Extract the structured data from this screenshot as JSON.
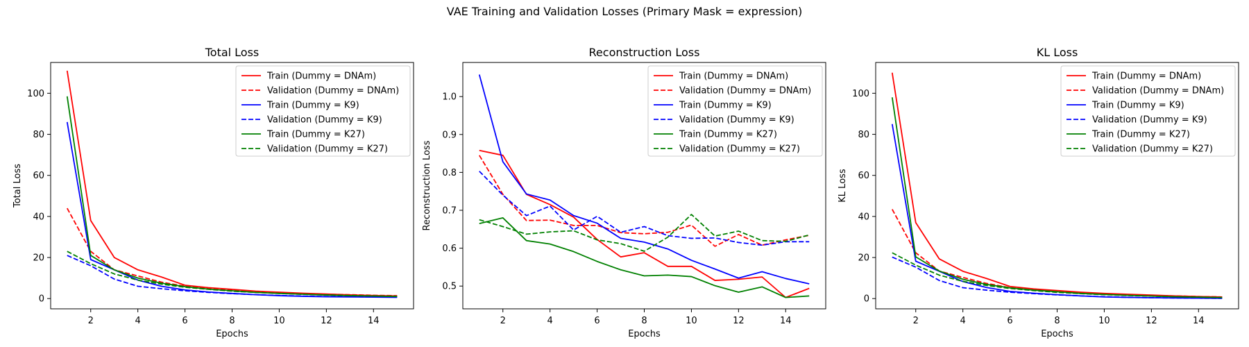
{
  "figure": {
    "suptitle": "VAE Training and Validation Losses (Primary Mask = expression)"
  },
  "legend_labels": [
    "Train (Dummy = DNAm)",
    "Validation (Dummy = DNAm)",
    "Train (Dummy = K9)",
    "Validation (Dummy = K9)",
    "Train (Dummy = K27)",
    "Validation (Dummy = K27)"
  ],
  "colors": {
    "DNAm": "#ff0000",
    "K9": "#0000ff",
    "K27": "#008000"
  },
  "chart_data": [
    {
      "type": "line",
      "title": "Total Loss",
      "xlabel": "Epochs",
      "ylabel": "Total Loss",
      "xlim": [
        0.3,
        15.7
      ],
      "ylim": [
        -5,
        115
      ],
      "xticks": [
        2,
        4,
        6,
        8,
        10,
        12,
        14
      ],
      "yticks": [
        0,
        20,
        40,
        60,
        80,
        100
      ],
      "grid": false,
      "legend_position": "upper right",
      "x": [
        1,
        2,
        3,
        4,
        5,
        6,
        7,
        8,
        9,
        10,
        11,
        12,
        13,
        14,
        15
      ],
      "series": [
        {
          "name": "Train (Dummy = DNAm)",
          "color": "#ff0000",
          "style": "solid",
          "values": [
            111,
            38,
            20,
            14,
            10.5,
            6.5,
            5.3,
            4.5,
            3.6,
            3.1,
            2.6,
            2.2,
            1.8,
            1.5,
            1.3
          ]
        },
        {
          "name": "Validation (Dummy = DNAm)",
          "color": "#ff0000",
          "style": "dashed",
          "values": [
            44,
            23,
            14,
            11,
            8,
            6,
            5,
            4,
            3.3,
            2.8,
            2.4,
            2.1,
            1.9,
            1.6,
            1.4
          ]
        },
        {
          "name": "Train (Dummy = K9)",
          "color": "#0000ff",
          "style": "solid",
          "values": [
            86,
            19,
            14,
            9,
            6,
            4.2,
            3.2,
            2.5,
            1.9,
            1.4,
            1.1,
            0.9,
            0.8,
            0.7,
            0.6
          ]
        },
        {
          "name": "Validation (Dummy = K9)",
          "color": "#0000ff",
          "style": "dashed",
          "values": [
            21,
            16,
            9.5,
            6,
            4.8,
            3.8,
            3,
            2.4,
            1.9,
            1.5,
            1.2,
            1,
            0.9,
            0.8,
            0.7
          ]
        },
        {
          "name": "Train (Dummy = K27)",
          "color": "#008000",
          "style": "solid",
          "values": [
            98.5,
            21,
            14,
            10,
            7.5,
            5.8,
            4.6,
            3.8,
            3,
            2.5,
            2.1,
            1.7,
            1.4,
            1.2,
            1
          ]
        },
        {
          "name": "Validation (Dummy = K27)",
          "color": "#008000",
          "style": "dashed",
          "values": [
            23,
            17,
            12,
            9,
            7,
            5.5,
            4.5,
            3.6,
            3,
            2.5,
            2.1,
            1.8,
            1.5,
            1.3,
            1.1
          ]
        }
      ]
    },
    {
      "type": "line",
      "title": "Reconstruction Loss",
      "xlabel": "Epochs",
      "ylabel": "Reconstruction Loss",
      "xlim": [
        0.3,
        15.7
      ],
      "ylim": [
        0.44,
        1.09
      ],
      "xticks": [
        2,
        4,
        6,
        8,
        10,
        12,
        14
      ],
      "yticks": [
        0.5,
        0.6,
        0.7,
        0.8,
        0.9,
        1.0
      ],
      "grid": false,
      "legend_position": "upper right",
      "x": [
        1,
        2,
        3,
        4,
        5,
        6,
        7,
        8,
        9,
        10,
        11,
        12,
        13,
        14,
        15
      ],
      "series": [
        {
          "name": "Train (Dummy = DNAm)",
          "color": "#ff0000",
          "style": "solid",
          "values": [
            0.858,
            0.845,
            0.742,
            0.715,
            0.682,
            0.623,
            0.577,
            0.588,
            0.552,
            0.552,
            0.515,
            0.518,
            0.524,
            0.47,
            0.494
          ]
        },
        {
          "name": "Validation (Dummy = DNAm)",
          "color": "#ff0000",
          "style": "dashed",
          "values": [
            0.845,
            0.742,
            0.673,
            0.674,
            0.66,
            0.66,
            0.641,
            0.638,
            0.642,
            0.661,
            0.605,
            0.636,
            0.608,
            0.622,
            0.634
          ]
        },
        {
          "name": "Train (Dummy = K9)",
          "color": "#0000ff",
          "style": "solid",
          "values": [
            1.058,
            0.828,
            0.743,
            0.727,
            0.686,
            0.666,
            0.626,
            0.616,
            0.598,
            0.568,
            0.545,
            0.521,
            0.538,
            0.52,
            0.506
          ]
        },
        {
          "name": "Validation (Dummy = K9)",
          "color": "#0000ff",
          "style": "dashed",
          "values": [
            0.803,
            0.74,
            0.686,
            0.711,
            0.648,
            0.684,
            0.642,
            0.657,
            0.633,
            0.626,
            0.627,
            0.615,
            0.608,
            0.617,
            0.617
          ]
        },
        {
          "name": "Train (Dummy = K27)",
          "color": "#008000",
          "style": "solid",
          "values": [
            0.665,
            0.68,
            0.62,
            0.611,
            0.591,
            0.565,
            0.543,
            0.527,
            0.529,
            0.525,
            0.501,
            0.484,
            0.498,
            0.47,
            0.474
          ]
        },
        {
          "name": "Validation (Dummy = K27)",
          "color": "#008000",
          "style": "dashed",
          "values": [
            0.675,
            0.657,
            0.637,
            0.643,
            0.646,
            0.622,
            0.612,
            0.592,
            0.629,
            0.689,
            0.632,
            0.645,
            0.62,
            0.618,
            0.635
          ]
        }
      ]
    },
    {
      "type": "line",
      "title": "KL Loss",
      "xlabel": "Epochs",
      "ylabel": "KL Loss",
      "xlim": [
        0.3,
        15.7
      ],
      "ylim": [
        -5,
        115
      ],
      "xticks": [
        2,
        4,
        6,
        8,
        10,
        12,
        14
      ],
      "yticks": [
        0,
        20,
        40,
        60,
        80,
        100
      ],
      "grid": false,
      "legend_position": "upper right",
      "x": [
        1,
        2,
        3,
        4,
        5,
        6,
        7,
        8,
        9,
        10,
        11,
        12,
        13,
        14,
        15
      ],
      "series": [
        {
          "name": "Train (Dummy = DNAm)",
          "color": "#ff0000",
          "style": "solid",
          "values": [
            110,
            37,
            19.3,
            13.3,
            9.8,
            5.9,
            4.7,
            3.9,
            3.1,
            2.5,
            2.1,
            1.7,
            1.3,
            1,
            0.8
          ]
        },
        {
          "name": "Validation (Dummy = DNAm)",
          "color": "#ff0000",
          "style": "dashed",
          "values": [
            43.5,
            22.3,
            13.4,
            10.3,
            7.4,
            5.3,
            4.3,
            3.4,
            2.7,
            2.1,
            1.8,
            1.5,
            1.3,
            1,
            0.8
          ]
        },
        {
          "name": "Train (Dummy = K9)",
          "color": "#0000ff",
          "style": "solid",
          "values": [
            85,
            18.2,
            13.3,
            8.3,
            5.4,
            3.5,
            2.6,
            1.9,
            1.3,
            0.8,
            0.6,
            0.4,
            0.3,
            0.2,
            0.1
          ]
        },
        {
          "name": "Validation (Dummy = K9)",
          "color": "#0000ff",
          "style": "dashed",
          "values": [
            20.2,
            15.3,
            8.8,
            5.3,
            4.1,
            3.1,
            2.4,
            1.8,
            1.3,
            0.9,
            0.6,
            0.4,
            0.3,
            0.2,
            0.1
          ]
        },
        {
          "name": "Train (Dummy = K27)",
          "color": "#008000",
          "style": "solid",
          "values": [
            98,
            20.3,
            13.4,
            9.4,
            6.9,
            5.2,
            4.1,
            3.3,
            2.5,
            2,
            1.6,
            1.2,
            0.9,
            0.7,
            0.5
          ]
        },
        {
          "name": "Validation (Dummy = K27)",
          "color": "#008000",
          "style": "dashed",
          "values": [
            22.3,
            16.3,
            11.4,
            8.4,
            6.4,
            4.9,
            3.9,
            3,
            2.4,
            1.9,
            1.5,
            1.2,
            0.9,
            0.7,
            0.5
          ]
        }
      ]
    }
  ]
}
